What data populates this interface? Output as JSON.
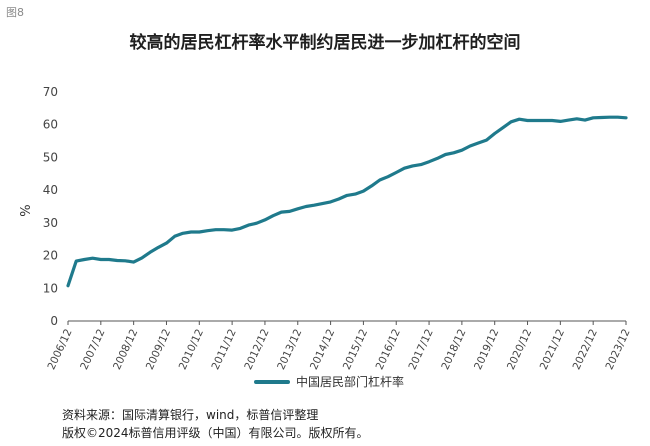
{
  "figure_label": "图8",
  "title": "较高的居民杠杆率水平制约居民进一步加杠杆的空间",
  "footer": {
    "source": "资料来源：国际清算银行，wind，标普信评整理",
    "copyright": "版权©2024标普信用评级（中国）有限公司。版权所有。"
  },
  "colors": {
    "series": "#1f7a8c",
    "axis": "#555555"
  },
  "chart_data": {
    "type": "line",
    "ylabel": "%",
    "xlabel": "",
    "ylim": [
      0,
      70
    ],
    "yticks": [
      0,
      10,
      20,
      30,
      40,
      50,
      60,
      70
    ],
    "xticks": [
      "2006/12",
      "2007/12",
      "2008/12",
      "2009/12",
      "2010/12",
      "2011/12",
      "2012/12",
      "2013/12",
      "2014/12",
      "2015/12",
      "2016/12",
      "2017/12",
      "2018/12",
      "2019/12",
      "2020/12",
      "2021/12",
      "2022/12",
      "2023/12"
    ],
    "grid": false,
    "legend_position": "bottom",
    "series": [
      {
        "name": "中国居民部门杠杆率",
        "x": [
          "2006/12",
          "2007/03",
          "2007/06",
          "2007/09",
          "2007/12",
          "2008/03",
          "2008/06",
          "2008/09",
          "2008/12",
          "2009/03",
          "2009/06",
          "2009/09",
          "2009/12",
          "2010/03",
          "2010/06",
          "2010/09",
          "2010/12",
          "2011/03",
          "2011/06",
          "2011/09",
          "2011/12",
          "2012/03",
          "2012/06",
          "2012/09",
          "2012/12",
          "2013/03",
          "2013/06",
          "2013/09",
          "2013/12",
          "2014/03",
          "2014/06",
          "2014/09",
          "2014/12",
          "2015/03",
          "2015/06",
          "2015/09",
          "2015/12",
          "2016/03",
          "2016/06",
          "2016/09",
          "2016/12",
          "2017/03",
          "2017/06",
          "2017/09",
          "2017/12",
          "2018/03",
          "2018/06",
          "2018/09",
          "2018/12",
          "2019/03",
          "2019/06",
          "2019/09",
          "2019/12",
          "2020/03",
          "2020/06",
          "2020/09",
          "2020/12",
          "2021/03",
          "2021/06",
          "2021/09",
          "2021/12",
          "2022/03",
          "2022/06",
          "2022/09",
          "2022/12",
          "2023/03",
          "2023/06",
          "2023/09",
          "2023/12"
        ],
        "values": [
          10.8,
          18.3,
          18.8,
          19.2,
          18.8,
          18.8,
          18.5,
          18.4,
          18.0,
          19.3,
          21.0,
          22.5,
          23.8,
          25.9,
          26.8,
          27.2,
          27.2,
          27.6,
          27.9,
          27.9,
          27.8,
          28.3,
          29.3,
          29.9,
          30.9,
          32.2,
          33.3,
          33.5,
          34.3,
          35.0,
          35.4,
          35.9,
          36.4,
          37.3,
          38.4,
          38.8,
          39.7,
          41.3,
          43.1,
          44.1,
          45.4,
          46.7,
          47.4,
          47.8,
          48.7,
          49.7,
          50.9,
          51.4,
          52.2,
          53.5,
          54.4,
          55.3,
          57.3,
          59.1,
          60.9,
          61.7,
          61.3,
          61.3,
          61.3,
          61.3,
          61.0,
          61.4,
          61.8,
          61.4,
          62.1,
          62.2,
          62.3,
          62.3,
          62.1
        ]
      }
    ]
  }
}
